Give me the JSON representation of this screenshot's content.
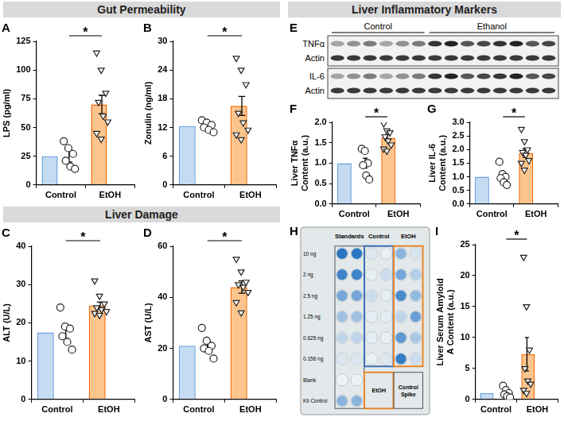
{
  "chart_data": [
    {
      "type": "bar",
      "panel_label": "A",
      "ylabel": "LPS (pg/ml)",
      "categories": [
        "Control",
        "EtOH"
      ],
      "values": [
        25,
        70
      ],
      "errors": [
        5,
        8
      ],
      "colors": [
        "#c5dbf2",
        "#fcc58e"
      ],
      "points": [
        {
          "marker": "circle",
          "values": [
            38,
            32,
            27,
            21,
            16,
            14
          ]
        },
        {
          "marker": "triangle_down",
          "values": [
            115,
            100,
            80,
            72,
            60,
            55,
            45,
            40
          ]
        }
      ],
      "ylim": [
        0,
        125
      ],
      "yticks": [
        0,
        25,
        50,
        75,
        100,
        125
      ],
      "annotations": [
        {
          "text": "*",
          "between": [
            "Control",
            "EtOH"
          ]
        }
      ]
    },
    {
      "type": "bar",
      "panel_label": "B",
      "ylabel": "Zonulin (ng/ml)",
      "categories": [
        "Control",
        "EtOH"
      ],
      "values": [
        12.3,
        16.5
      ],
      "errors": [
        0.4,
        2
      ],
      "colors": [
        "#c5dbf2",
        "#fcc58e"
      ],
      "points": [
        {
          "marker": "circle",
          "values": [
            13.5,
            13,
            12.5,
            12,
            11.5,
            11
          ]
        },
        {
          "marker": "triangle_down",
          "values": [
            26.5,
            24,
            21,
            15,
            13,
            11.5,
            10.5,
            9.5
          ]
        }
      ],
      "ylim": [
        0,
        30
      ],
      "yticks": [
        0,
        6,
        12,
        18,
        24,
        30
      ],
      "annotations": [
        {
          "text": "*",
          "between": [
            "Control",
            "EtOH"
          ]
        }
      ]
    },
    {
      "type": "bar",
      "panel_label": "C",
      "ylabel": "ALT (U/L)",
      "categories": [
        "Control",
        "EtOH"
      ],
      "values": [
        17.5,
        24.5
      ],
      "errors": [
        1.6,
        0.9
      ],
      "colors": [
        "#c5dbf2",
        "#fcc58e"
      ],
      "points": [
        {
          "marker": "circle",
          "values": [
            24,
            19,
            18.5,
            16.5,
            15,
            13
          ]
        },
        {
          "marker": "triangle_down",
          "values": [
            31,
            27,
            25,
            24,
            23.5,
            23,
            22.5,
            22
          ]
        }
      ],
      "ylim": [
        0,
        40
      ],
      "yticks": [
        0,
        10,
        20,
        30,
        40
      ],
      "annotations": [
        {
          "text": "*",
          "between": [
            "Control",
            "EtOH"
          ]
        }
      ]
    },
    {
      "type": "bar",
      "panel_label": "D",
      "ylabel": "AST (U/L)",
      "categories": [
        "Control",
        "EtOH"
      ],
      "values": [
        21,
        44
      ],
      "errors": [
        1.6,
        2.4
      ],
      "colors": [
        "#c5dbf2",
        "#fcc58e"
      ],
      "points": [
        {
          "marker": "circle",
          "values": [
            28,
            23,
            21,
            20,
            19,
            16
          ]
        },
        {
          "marker": "triangle_down",
          "values": [
            55,
            50,
            46,
            45,
            44,
            42,
            38,
            34
          ]
        }
      ],
      "ylim": [
        0,
        60
      ],
      "yticks": [
        0,
        20,
        40,
        60
      ],
      "annotations": [
        {
          "text": "*",
          "between": [
            "Control",
            "EtOH"
          ]
        }
      ]
    },
    {
      "type": "bar",
      "panel_label": "F",
      "ylabel": "Liver TNFα Content (a.u.)",
      "categories": [
        "Control",
        "EtOH"
      ],
      "values": [
        1.0,
        1.62
      ],
      "errors": [
        0.12,
        0.08
      ],
      "colors": [
        "#c5dbf2",
        "#fcc58e"
      ],
      "points": [
        {
          "marker": "circle",
          "values": [
            1.35,
            1.3,
            1.0,
            0.95,
            0.7,
            0.6
          ]
        },
        {
          "marker": "triangle_down",
          "values": [
            1.97,
            1.8,
            1.75,
            1.65,
            1.55,
            1.45,
            1.35,
            1.3
          ]
        }
      ],
      "ylim": [
        0,
        2
      ],
      "yticks": [
        {
          "value": 0,
          "label": "0.0"
        },
        0.5,
        {
          "value": 1,
          "label": "1.0"
        },
        1.5,
        {
          "value": 2,
          "label": "2.0"
        }
      ],
      "annotations": [
        {
          "text": "*",
          "between": [
            "Control",
            "EtOH"
          ]
        }
      ]
    },
    {
      "type": "bar",
      "panel_label": "G",
      "ylabel": "Liver IL-6 Content (a.u.)",
      "categories": [
        "Control",
        "EtOH"
      ],
      "values": [
        1.0,
        1.87
      ],
      "errors": [
        0.12,
        0.16
      ],
      "colors": [
        "#c5dbf2",
        "#fcc58e"
      ],
      "points": [
        {
          "marker": "circle",
          "values": [
            1.55,
            1.1,
            1.0,
            0.95,
            0.8,
            0.7
          ]
        },
        {
          "marker": "triangle_down",
          "values": [
            2.75,
            2.3,
            2.0,
            1.9,
            1.8,
            1.6,
            1.5,
            1.25
          ]
        }
      ],
      "ylim": [
        0,
        3
      ],
      "yticks": [
        {
          "value": 0,
          "label": "0.0"
        },
        0.5,
        {
          "value": 1,
          "label": "1.0"
        },
        1.5,
        {
          "value": 2,
          "label": "2.0"
        },
        2.5,
        {
          "value": 3,
          "label": "3.0"
        }
      ],
      "annotations": [
        {
          "text": "*",
          "between": [
            "Control",
            "EtOH"
          ]
        }
      ]
    },
    {
      "type": "bar",
      "panel_label": "I",
      "ylabel": "Liver Serum Amyloid A Content (a.u.)",
      "categories": [
        "Control",
        "EtOH"
      ],
      "values": [
        1.0,
        7.3
      ],
      "errors": [
        0.3,
        2.7
      ],
      "colors": [
        "#c5dbf2",
        "#fcc58e"
      ],
      "points": [
        {
          "marker": "circle",
          "values": [
            2.2,
            1.5,
            1.0,
            0.8,
            0.5,
            0.3
          ]
        },
        {
          "marker": "triangle_down",
          "values": [
            23,
            15,
            8,
            5,
            3,
            2.5,
            1.5,
            1.0
          ]
        }
      ],
      "ylim": [
        0,
        25
      ],
      "yticks": [
        0,
        5,
        10,
        15,
        20,
        25
      ],
      "annotations": [
        {
          "text": "*",
          "between": [
            "Control",
            "EtOH"
          ]
        }
      ]
    }
  ],
  "sections": [
    "Gut Permeability",
    "Liver Damage",
    "Liver Inflammatory Markers"
  ],
  "blot": {
    "panel_label": "E",
    "groups": [
      "Control",
      "Ethanol"
    ],
    "lanes": [
      6,
      8
    ],
    "rows": [
      "TNFα",
      "Actin",
      "IL-6",
      "Actin"
    ]
  },
  "plate": {
    "panel_label": "H",
    "columns": [
      "Standards",
      "Control",
      "EtOH"
    ],
    "rows": [
      "10 ng",
      "2 ng",
      "2.5 ng",
      "1.25 ng",
      "0.625 ng",
      "0.156 ng",
      "Blank",
      "Kit Control"
    ],
    "boxes": [
      "EtOH",
      "Control Spike"
    ]
  }
}
